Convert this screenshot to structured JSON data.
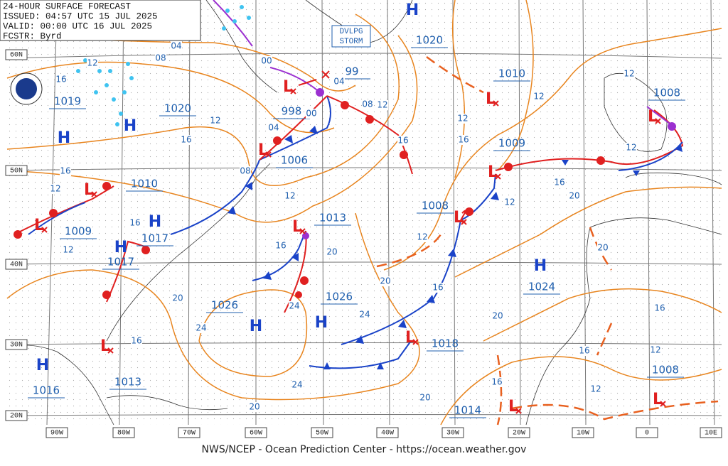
{
  "header": {
    "title": "24-HOUR SURFACE FORECAST",
    "issued": "ISSUED: 04:57 UTC 15 JUL 2025",
    "valid": "VALID:  00:00 UTC 16 JUL 2025",
    "forecaster": "FCSTR:  Byrd"
  },
  "annotation": [
    "DVLPG",
    "STORM"
  ],
  "latitude_labels": [
    "60N",
    "50N",
    "40N",
    "30N",
    "20N"
  ],
  "longitude_labels": [
    "90W",
    "80W",
    "70W",
    "60W",
    "50W",
    "40W",
    "30W",
    "20W",
    "10W",
    "0",
    "10E"
  ],
  "highs": [
    "H",
    "H",
    "H",
    "H",
    "H",
    "H",
    "H",
    "H",
    "H"
  ],
  "lows": [
    "L",
    "L",
    "L",
    "L",
    "L",
    "L",
    "L",
    "L",
    "L",
    "L",
    "L",
    "L",
    "L"
  ],
  "pressure_labels": [
    "1020",
    "1010",
    "1008",
    "99",
    "998",
    "1019",
    "1020",
    "1006",
    "1009",
    "1010",
    "1008",
    "1013",
    "1009",
    "1017",
    "1017",
    "1024",
    "1026",
    "1026",
    "1018",
    "1008",
    "1016",
    "1013",
    "1014"
  ],
  "isobar_labels": [
    "04",
    "08",
    "12",
    "16",
    "00",
    "04",
    "00",
    "08",
    "12",
    "16",
    "04",
    "08",
    "12",
    "16",
    "16",
    "12",
    "12",
    "12",
    "16",
    "12",
    "12",
    "12",
    "16",
    "20",
    "12",
    "12",
    "16",
    "12",
    "16",
    "20",
    "20",
    "16",
    "20",
    "20",
    "16",
    "16",
    "12",
    "12",
    "16",
    "20",
    "24",
    "24",
    "24",
    "24",
    "20",
    "20",
    "16"
  ],
  "footer": "NWS/NCEP - Ocean Prediction Center - https://ocean.weather.gov"
}
